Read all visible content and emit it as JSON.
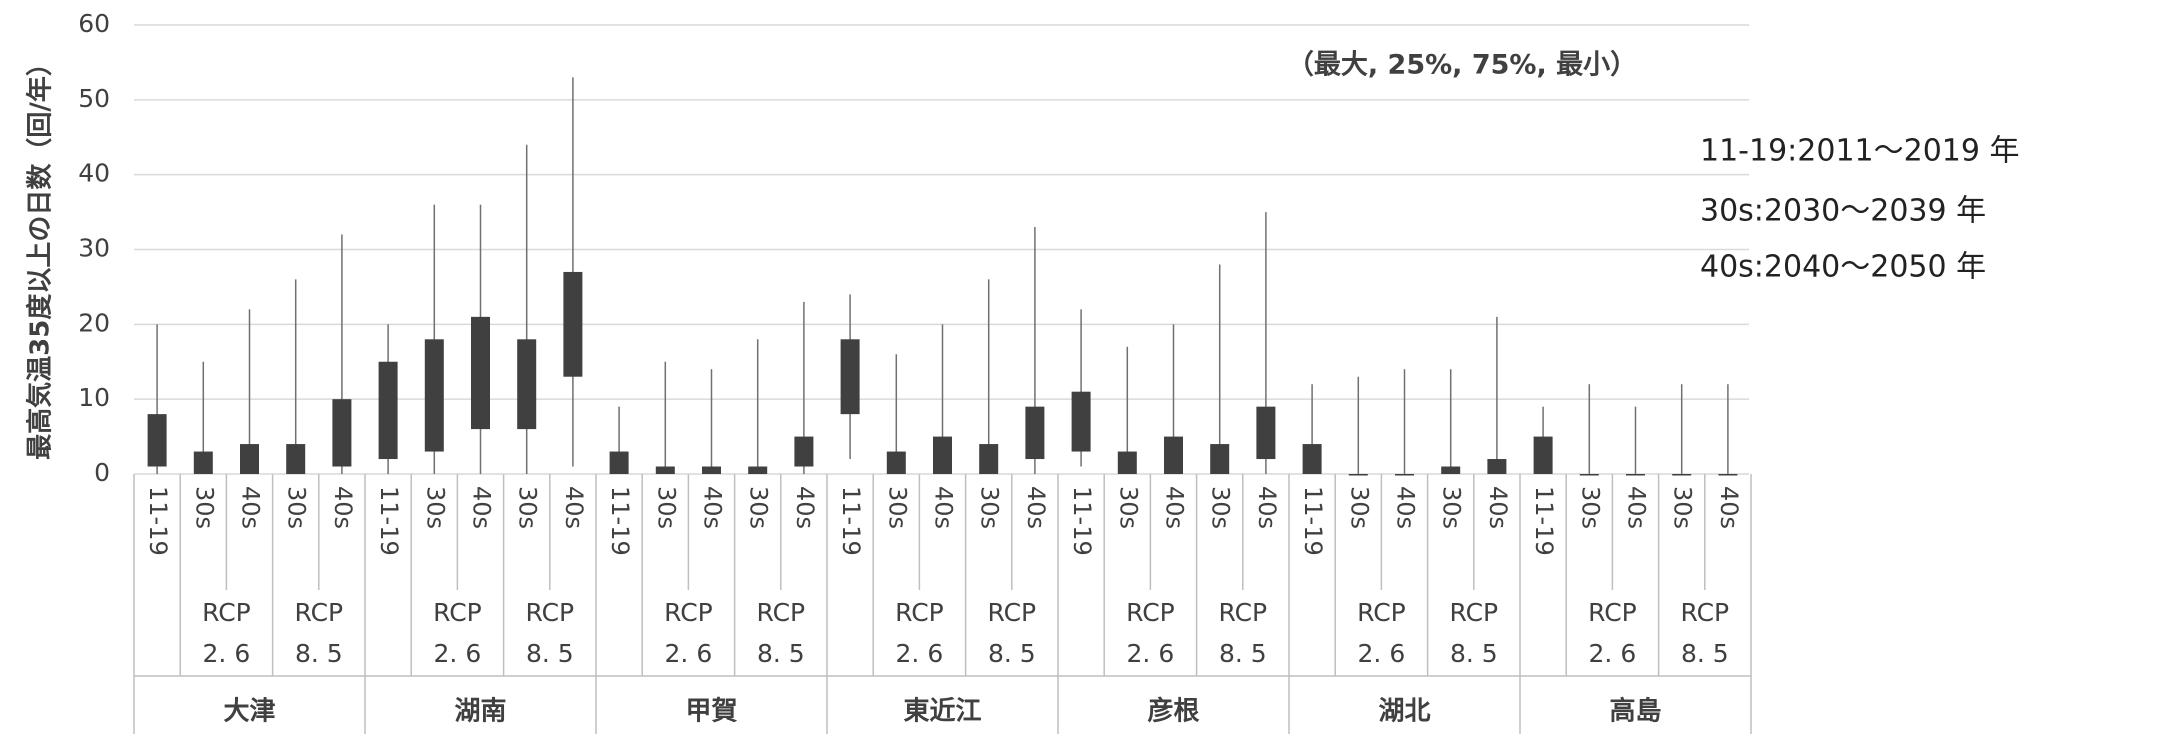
{
  "chart_data": {
    "type": "box",
    "y_label": "最高気温35度以上の日数（回/年）",
    "annotation": "（最大, 25%, 75%, 最小）",
    "notes": [
      "11-19:2011～2019 年",
      "30s:2030～2039 年",
      "40s:2040～2050 年"
    ],
    "ylim": [
      0,
      60
    ],
    "yticks": [
      0,
      10,
      20,
      30,
      40,
      50,
      60
    ],
    "grid": true,
    "color": "#404040",
    "whisker_color": "#707070",
    "regions": [
      "大津",
      "湖南",
      "甲賀",
      "東近江",
      "彦根",
      "湖北",
      "高島"
    ],
    "scenario_labels": [
      [
        "RCP",
        "2. 6"
      ],
      [
        "RCP",
        "8. 5"
      ]
    ],
    "categories": [
      "11-19",
      "30s",
      "40s",
      "30s",
      "40s",
      "11-19",
      "30s",
      "40s",
      "30s",
      "40s",
      "11-19",
      "30s",
      "40s",
      "30s",
      "40s",
      "11-19",
      "30s",
      "40s",
      "30s",
      "40s",
      "11-19",
      "30s",
      "40s",
      "30s",
      "40s",
      "11-19",
      "30s",
      "40s",
      "30s",
      "40s",
      "11-19",
      "30s",
      "40s",
      "30s",
      "40s"
    ],
    "max": [
      20,
      15,
      22,
      26,
      32,
      20,
      36,
      36,
      44,
      53,
      9,
      15,
      14,
      18,
      23,
      24,
      16,
      20,
      26,
      33,
      22,
      17,
      20,
      28,
      35,
      12,
      13,
      14,
      14,
      21,
      9,
      12,
      9,
      12,
      12
    ],
    "q75": [
      8,
      3,
      4,
      4,
      10,
      15,
      18,
      21,
      18,
      27,
      3,
      1,
      1,
      1,
      5,
      18,
      3,
      5,
      4,
      9,
      11,
      3,
      5,
      4,
      9,
      4,
      0,
      0,
      1,
      2,
      5,
      0,
      0,
      0,
      0
    ],
    "q25": [
      1,
      0,
      0,
      0,
      1,
      2,
      3,
      6,
      6,
      13,
      0,
      0,
      0,
      0,
      1,
      8,
      0,
      0,
      0,
      2,
      3,
      0,
      0,
      0,
      2,
      0,
      0,
      0,
      0,
      0,
      0,
      0,
      0,
      0,
      0
    ],
    "min": [
      0,
      0,
      0,
      0,
      0,
      0,
      0,
      0,
      0,
      1,
      0,
      0,
      0,
      0,
      0,
      2,
      0,
      0,
      0,
      0,
      1,
      0,
      0,
      0,
      0,
      0,
      0,
      0,
      0,
      0,
      0,
      0,
      0,
      0,
      0
    ]
  }
}
